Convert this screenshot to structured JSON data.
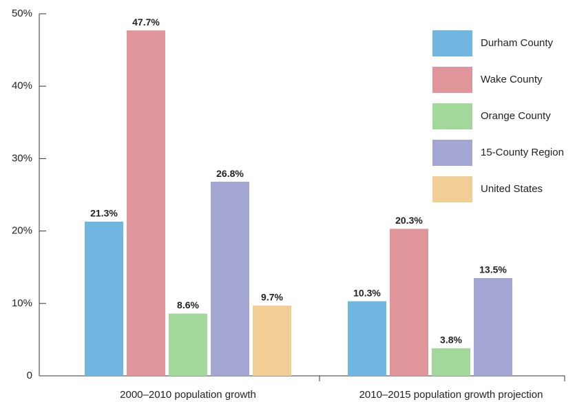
{
  "chart_data": {
    "type": "bar",
    "categories": [
      "2000–2010 population growth",
      "2010–2015 population growth projection"
    ],
    "series": [
      {
        "name": "Durham County",
        "color": "#6fb7e1",
        "values": [
          21.3,
          10.3
        ],
        "value_labels": [
          "21.3%",
          "10.3%"
        ]
      },
      {
        "name": "Wake County",
        "color": "#e0959b",
        "values": [
          47.7,
          20.3
        ],
        "value_labels": [
          "47.7%",
          "20.3%"
        ]
      },
      {
        "name": "Orange County",
        "color": "#a2d89a",
        "values": [
          8.6,
          3.8
        ],
        "value_labels": [
          "8.6%",
          "3.8%"
        ]
      },
      {
        "name": "15-County Region",
        "color": "#a3a5d3",
        "values": [
          26.8,
          13.5
        ],
        "value_labels": [
          "26.8%",
          "13.5%"
        ]
      },
      {
        "name": "United States",
        "color": "#f2cd96",
        "values": [
          9.7,
          null
        ],
        "value_labels": [
          "9.7%",
          null
        ]
      }
    ],
    "ylim": [
      0,
      50
    ],
    "yticks": [
      0,
      {
        "value": 10,
        "label": "10%"
      },
      {
        "value": 20,
        "label": "20%"
      },
      {
        "value": 30,
        "label": "30%"
      },
      {
        "value": 40,
        "label": "40%"
      },
      {
        "value": 50,
        "label": "50%"
      }
    ],
    "legend": "top-right"
  }
}
